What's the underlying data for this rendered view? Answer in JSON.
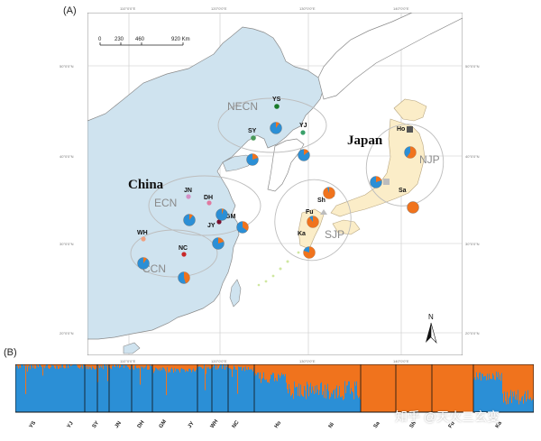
{
  "panels": {
    "a_label": "(A)",
    "b_label": "(B)"
  },
  "map": {
    "scale_ticks": [
      "0",
      "230",
      "460",
      "920 Km"
    ],
    "lat_labels": [
      "50°0'0\"N",
      "40°0'0\"N",
      "30°0'0\"N",
      "20°0'0\"N"
    ],
    "lon_labels": [
      "110°0'0\"E",
      "120°0'0\"E",
      "130°0'0\"E",
      "140°0'0\"E"
    ],
    "north_label": "N",
    "countries": {
      "china": "China",
      "japan": "Japan"
    },
    "regions": {
      "necn": "NECN",
      "ecn": "ECN",
      "ccn": "CCN",
      "sjp": "SJP",
      "njp": "NJP"
    },
    "populations": {
      "ys": "YS",
      "sy": "SY",
      "yj": "YJ",
      "jn": "JN",
      "dh": "DH",
      "gm": "GM",
      "jy": "JY",
      "wh": "WH",
      "nc": "NC",
      "ho": "Ho",
      "ni": "Ni",
      "sh": "Sh",
      "fu": "Fu",
      "ka": "Ka",
      "sa": "Sa"
    },
    "pies": {
      "ys": 0.1,
      "sy": 0.2,
      "yj": 0.15,
      "dh": 0.05,
      "jn": 0.1,
      "gm": 0.35,
      "jy": 0.2,
      "wh": 0.1,
      "nc": 0.45,
      "ho": 0.6,
      "ni": 0.2,
      "sh": 0.95,
      "fu": 0.9,
      "ka": 0.8,
      "sa": 1.0
    },
    "colors": {
      "sea": "#ffffff",
      "land_china": "#cfe3ef",
      "land_japan": "#fbedc8",
      "blue": "#2b8fd6",
      "orange": "#f0731d"
    }
  },
  "structure": {
    "x_labels": [
      "YS",
      "YJ",
      "SY",
      "JN",
      "DH",
      "GM",
      "JY",
      "WH",
      "NC",
      "Ho",
      "Ni",
      "Sa",
      "Sh",
      "Fu",
      "Ka"
    ]
  },
  "watermark": "知乎 @天火三玄变"
}
